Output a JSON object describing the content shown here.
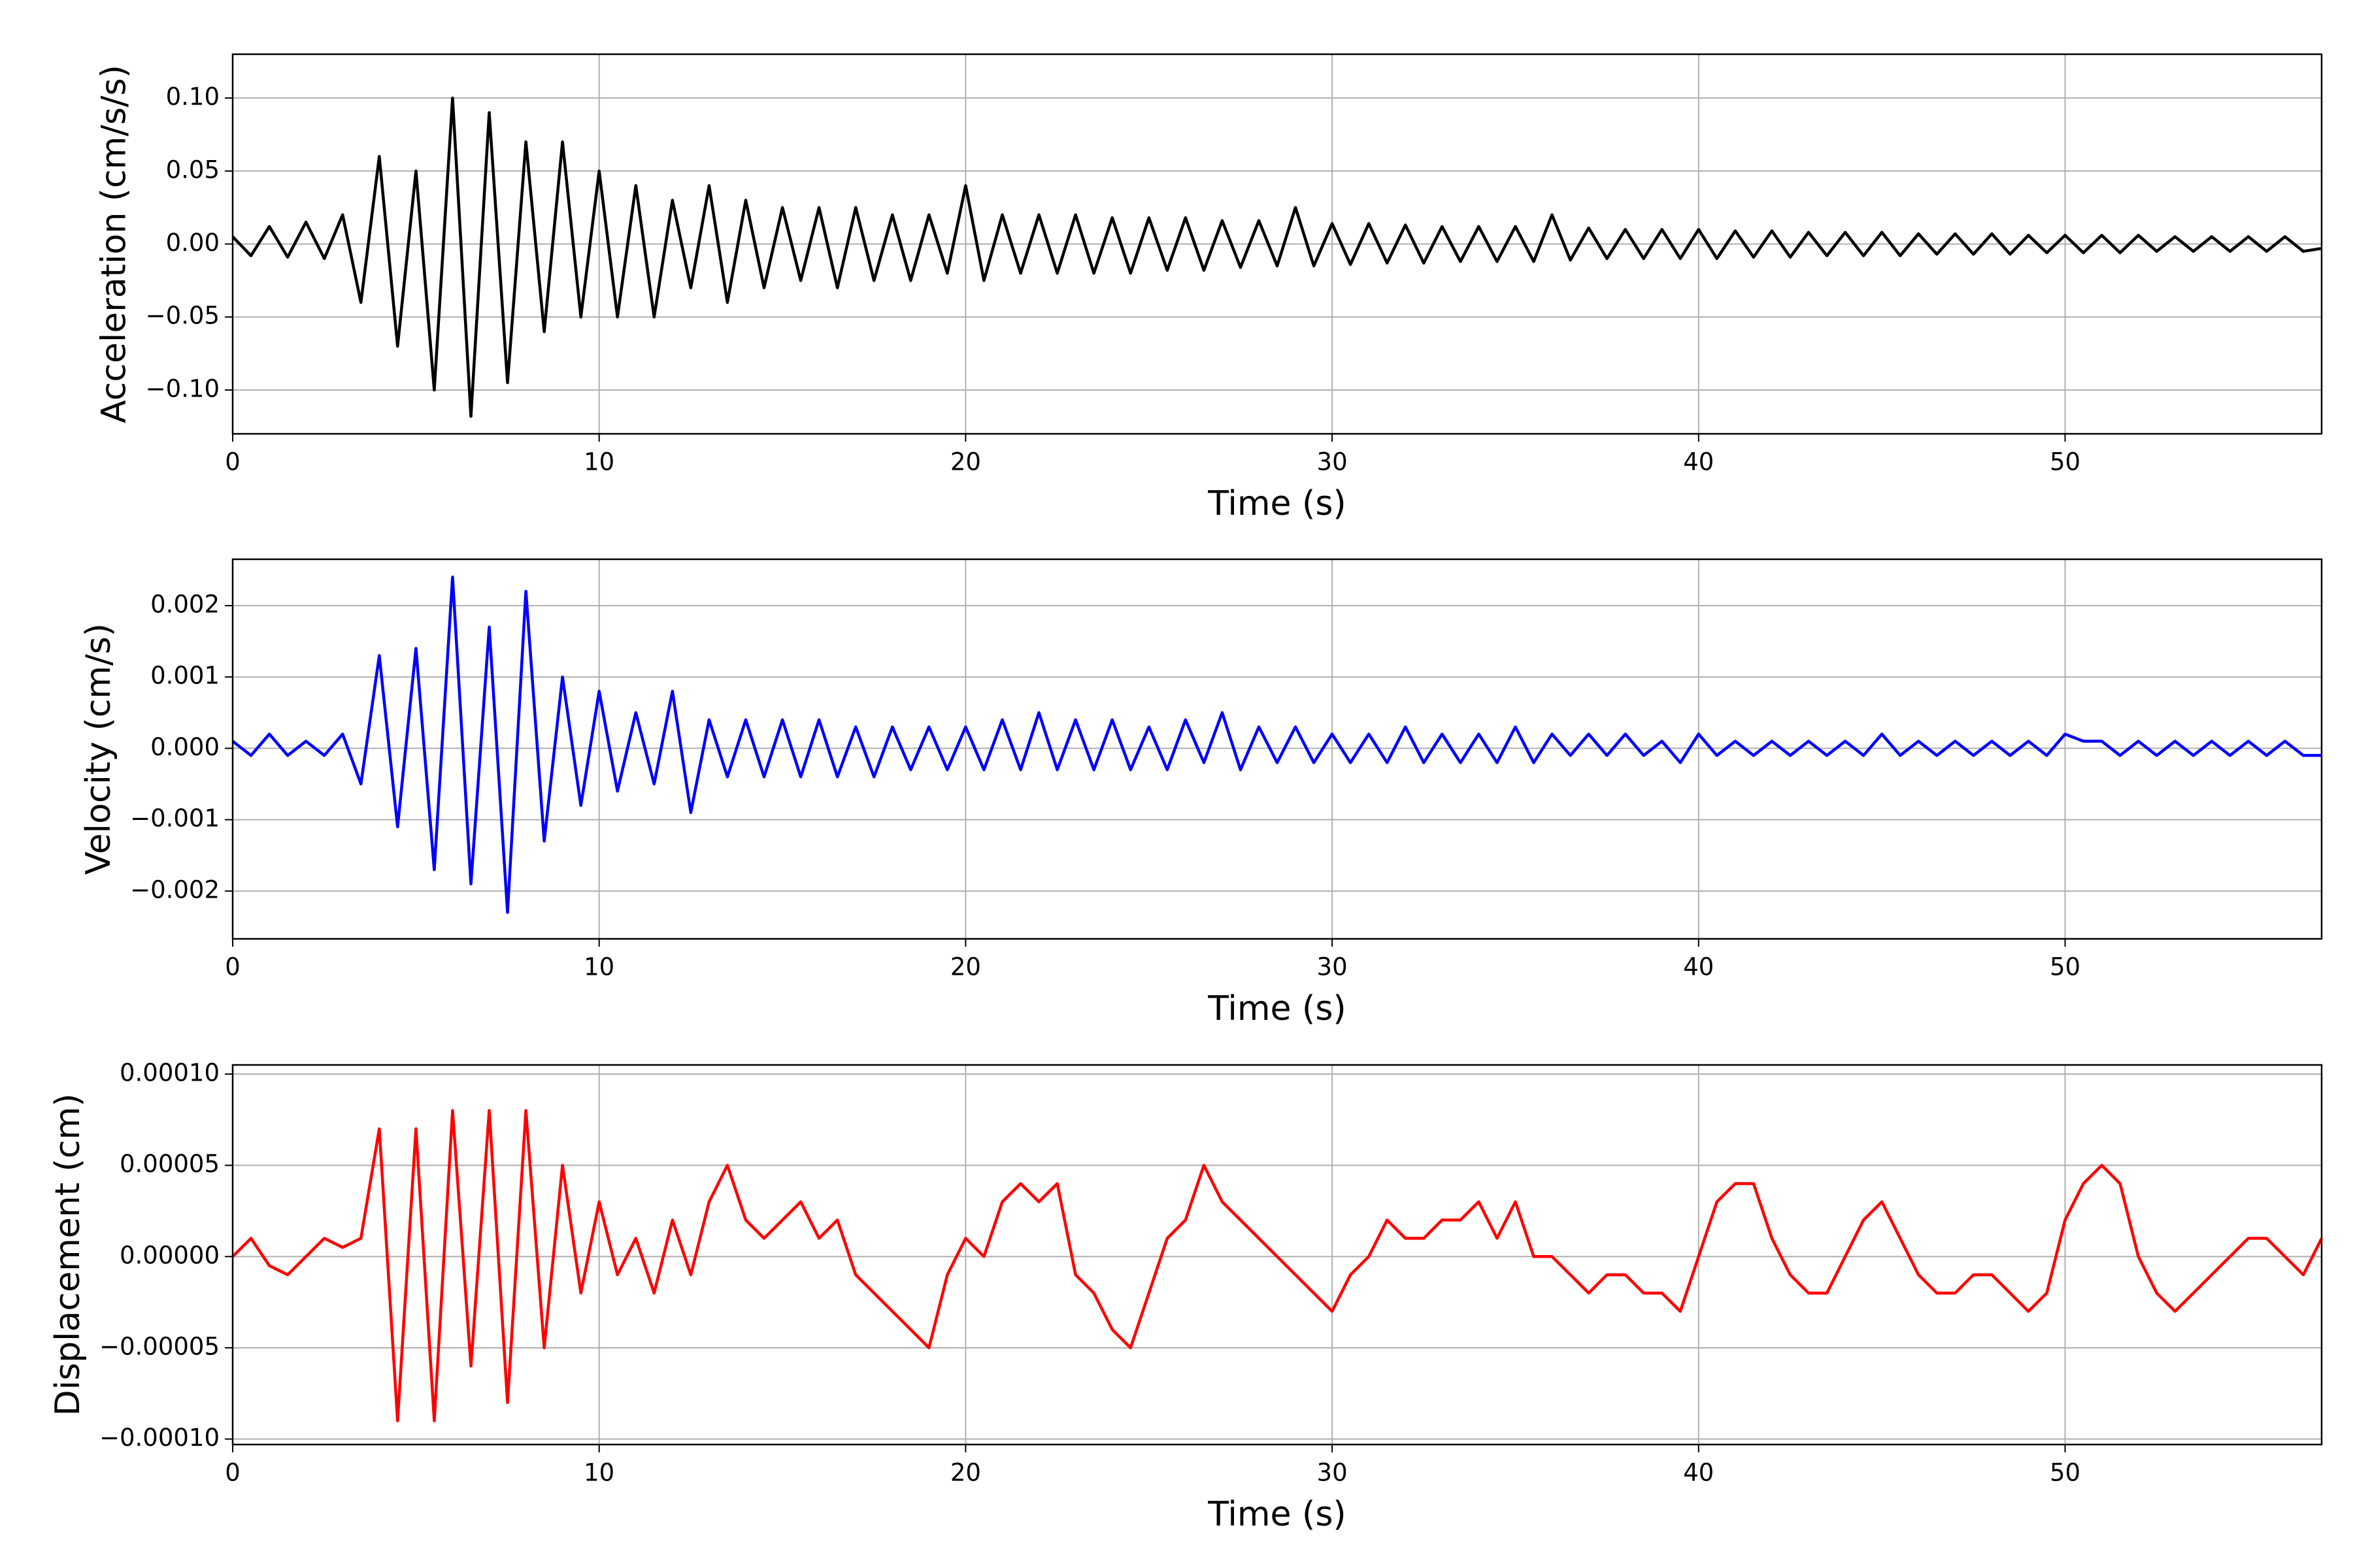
{
  "chart_data": [
    {
      "type": "line",
      "ylabel": "Acceleration (cm/s/s)",
      "xlabel": "Time (s)",
      "color": "#000000",
      "grid": true,
      "xlim": [
        0,
        57
      ],
      "xticks": [
        0,
        10,
        20,
        30,
        40,
        50
      ],
      "ylim": [
        -0.13,
        0.13
      ],
      "yticks": [
        {
          "value": -0.1,
          "label": "−0.10"
        },
        {
          "value": -0.05,
          "label": "−0.05"
        },
        {
          "value": 0,
          "label": "0.00"
        },
        {
          "value": 0.05,
          "label": "0.05"
        },
        {
          "value": 0.1,
          "label": "0.10"
        }
      ],
      "x": [
        0,
        0.5,
        1,
        1.5,
        2,
        2.5,
        3,
        3.5,
        4,
        4.5,
        5,
        5.5,
        6,
        6.5,
        7,
        7.5,
        8,
        8.5,
        9,
        9.5,
        10,
        10.5,
        11,
        11.5,
        12,
        12.5,
        13,
        13.5,
        14,
        14.5,
        15,
        15.5,
        16,
        16.5,
        17,
        17.5,
        18,
        18.5,
        19,
        19.5,
        20,
        20.5,
        21,
        21.5,
        22,
        22.5,
        23,
        23.5,
        24,
        24.5,
        25,
        25.5,
        26,
        26.5,
        27,
        27.5,
        28,
        28.5,
        29,
        29.5,
        30,
        30.5,
        31,
        31.5,
        32,
        32.5,
        33,
        33.5,
        34,
        34.5,
        35,
        35.5,
        36,
        36.5,
        37,
        37.5,
        38,
        38.5,
        39,
        39.5,
        40,
        40.5,
        41,
        41.5,
        42,
        42.5,
        43,
        43.5,
        44,
        44.5,
        45,
        45.5,
        46,
        46.5,
        47,
        47.5,
        48,
        48.5,
        49,
        49.5,
        50,
        50.5,
        51,
        51.5,
        52,
        52.5,
        53,
        53.5,
        54,
        54.5,
        55,
        55.5,
        56,
        56.5,
        57
      ],
      "values": [
        0.005,
        -0.008,
        0.012,
        -0.009,
        0.015,
        -0.01,
        0.02,
        -0.04,
        0.06,
        -0.07,
        0.05,
        -0.1,
        0.1,
        -0.118,
        0.09,
        -0.095,
        0.07,
        -0.06,
        0.07,
        -0.05,
        0.05,
        -0.05,
        0.04,
        -0.05,
        0.03,
        -0.03,
        0.04,
        -0.04,
        0.03,
        -0.03,
        0.025,
        -0.025,
        0.025,
        -0.03,
        0.025,
        -0.025,
        0.02,
        -0.025,
        0.02,
        -0.02,
        0.04,
        -0.025,
        0.02,
        -0.02,
        0.02,
        -0.02,
        0.02,
        -0.02,
        0.018,
        -0.02,
        0.018,
        -0.018,
        0.018,
        -0.018,
        0.016,
        -0.016,
        0.016,
        -0.015,
        0.025,
        -0.015,
        0.014,
        -0.014,
        0.014,
        -0.013,
        0.013,
        -0.013,
        0.012,
        -0.012,
        0.012,
        -0.012,
        0.012,
        -0.012,
        0.02,
        -0.011,
        0.011,
        -0.01,
        0.01,
        -0.01,
        0.01,
        -0.01,
        0.01,
        -0.01,
        0.009,
        -0.009,
        0.009,
        -0.009,
        0.008,
        -0.008,
        0.008,
        -0.008,
        0.008,
        -0.008,
        0.007,
        -0.007,
        0.007,
        -0.007,
        0.007,
        -0.007,
        0.006,
        -0.006,
        0.006,
        -0.006,
        0.006,
        -0.006,
        0.006,
        -0.005,
        0.005,
        -0.005,
        0.005,
        -0.005,
        0.005,
        -0.005,
        0.005,
        -0.005,
        -0.003
      ]
    },
    {
      "type": "line",
      "ylabel": "Velocity (cm/s)",
      "xlabel": "Time (s)",
      "color": "#0000ff",
      "grid": true,
      "xlim": [
        0,
        57
      ],
      "xticks": [
        0,
        10,
        20,
        30,
        40,
        50
      ],
      "ylim": [
        -0.00267,
        0.00265
      ],
      "yticks": [
        {
          "value": -0.002,
          "label": "−0.002"
        },
        {
          "value": -0.001,
          "label": "−0.001"
        },
        {
          "value": 0,
          "label": "0.000"
        },
        0.001,
        0.002
      ],
      "x": [
        0,
        0.5,
        1,
        1.5,
        2,
        2.5,
        3,
        3.5,
        4,
        4.5,
        5,
        5.5,
        6,
        6.5,
        7,
        7.5,
        8,
        8.5,
        9,
        9.5,
        10,
        10.5,
        11,
        11.5,
        12,
        12.5,
        13,
        13.5,
        14,
        14.5,
        15,
        15.5,
        16,
        16.5,
        17,
        17.5,
        18,
        18.5,
        19,
        19.5,
        20,
        20.5,
        21,
        21.5,
        22,
        22.5,
        23,
        23.5,
        24,
        24.5,
        25,
        25.5,
        26,
        26.5,
        27,
        27.5,
        28,
        28.5,
        29,
        29.5,
        30,
        30.5,
        31,
        31.5,
        32,
        32.5,
        33,
        33.5,
        34,
        34.5,
        35,
        35.5,
        36,
        36.5,
        37,
        37.5,
        38,
        38.5,
        39,
        39.5,
        40,
        40.5,
        41,
        41.5,
        42,
        42.5,
        43,
        43.5,
        44,
        44.5,
        45,
        45.5,
        46,
        46.5,
        47,
        47.5,
        48,
        48.5,
        49,
        49.5,
        50,
        50.5,
        51,
        51.5,
        52,
        52.5,
        53,
        53.5,
        54,
        54.5,
        55,
        55.5,
        56,
        56.5,
        57
      ],
      "values": [
        0.0001,
        -0.0001,
        0.0002,
        -0.0001,
        0.0001,
        -0.0001,
        0.0002,
        -0.0005,
        0.0013,
        -0.0011,
        0.0014,
        -0.0017,
        0.0024,
        -0.0019,
        0.0017,
        -0.0023,
        0.0022,
        -0.0013,
        0.001,
        -0.0008,
        0.0008,
        -0.0006,
        0.0005,
        -0.0005,
        0.0008,
        -0.0009,
        0.0004,
        -0.0004,
        0.0004,
        -0.0004,
        0.0004,
        -0.0004,
        0.0004,
        -0.0004,
        0.0003,
        -0.0004,
        0.0003,
        -0.0003,
        0.0003,
        -0.0003,
        0.0003,
        -0.0003,
        0.0004,
        -0.0003,
        0.0005,
        -0.0003,
        0.0004,
        -0.0003,
        0.0004,
        -0.0003,
        0.0003,
        -0.0003,
        0.0004,
        -0.0002,
        0.0005,
        -0.0003,
        0.0003,
        -0.0002,
        0.0003,
        -0.0002,
        0.0002,
        -0.0002,
        0.0002,
        -0.0002,
        0.0003,
        -0.0002,
        0.0002,
        -0.0002,
        0.0002,
        -0.0002,
        0.0003,
        -0.0002,
        0.0002,
        -0.0001,
        0.0002,
        -0.0001,
        0.0002,
        -0.0001,
        0.0001,
        -0.0002,
        0.0002,
        -0.0001,
        0.0001,
        -0.0001,
        0.0001,
        -0.0001,
        0.0001,
        -0.0001,
        0.0001,
        -0.0001,
        0.0002,
        -0.0001,
        0.0001,
        -0.0001,
        0.0001,
        -0.0001,
        0.0001,
        -0.0001,
        0.0001,
        -0.0001,
        0.0002,
        0.0001,
        0.0001,
        -0.0001,
        0.0001,
        -0.0001,
        0.0001,
        -0.0001,
        0.0001,
        -0.0001,
        0.0001,
        -0.0001,
        0.0001,
        -0.0001,
        -0.0001
      ]
    },
    {
      "type": "line",
      "ylabel": "Displacement (cm)",
      "xlabel": "Time (s)",
      "color": "#ff0000",
      "grid": true,
      "xlim": [
        0,
        57
      ],
      "xticks": [
        0,
        10,
        20,
        30,
        40,
        50
      ],
      "ylim": [
        -0.000103,
        0.000105
      ],
      "yticks": [
        {
          "value": -0.0001,
          "label": "−0.00010"
        },
        {
          "value": -5e-05,
          "label": "−0.00005"
        },
        {
          "value": 0,
          "label": "0.00000"
        },
        {
          "value": 5e-05,
          "label": "0.00005"
        },
        {
          "value": 0.0001,
          "label": "0.00010"
        }
      ],
      "x": [
        0,
        0.5,
        1,
        1.5,
        2,
        2.5,
        3,
        3.5,
        4,
        4.5,
        5,
        5.5,
        6,
        6.5,
        7,
        7.5,
        8,
        8.5,
        9,
        9.5,
        10,
        10.5,
        11,
        11.5,
        12,
        12.5,
        13,
        13.5,
        14,
        14.5,
        15,
        15.5,
        16,
        16.5,
        17,
        17.5,
        18,
        18.5,
        19,
        19.5,
        20,
        20.5,
        21,
        21.5,
        22,
        22.5,
        23,
        23.5,
        24,
        24.5,
        25,
        25.5,
        26,
        26.5,
        27,
        27.5,
        28,
        28.5,
        29,
        29.5,
        30,
        30.5,
        31,
        31.5,
        32,
        32.5,
        33,
        33.5,
        34,
        34.5,
        35,
        35.5,
        36,
        36.5,
        37,
        37.5,
        38,
        38.5,
        39,
        39.5,
        40,
        40.5,
        41,
        41.5,
        42,
        42.5,
        43,
        43.5,
        44,
        44.5,
        45,
        45.5,
        46,
        46.5,
        47,
        47.5,
        48,
        48.5,
        49,
        49.5,
        50,
        50.5,
        51,
        51.5,
        52,
        52.5,
        53,
        53.5,
        54,
        54.5,
        55,
        55.5,
        56,
        56.5,
        57
      ],
      "values": [
        0,
        1e-05,
        -5e-06,
        -1e-05,
        0,
        1e-05,
        5e-06,
        1e-05,
        7e-05,
        -9e-05,
        7e-05,
        -9e-05,
        8e-05,
        -6e-05,
        8e-05,
        -8e-05,
        8e-05,
        -5e-05,
        5e-05,
        -2e-05,
        3e-05,
        -1e-05,
        1e-05,
        -2e-05,
        2e-05,
        -1e-05,
        3e-05,
        5e-05,
        2e-05,
        1e-05,
        2e-05,
        3e-05,
        1e-05,
        2e-05,
        -1e-05,
        -2e-05,
        -3e-05,
        -4e-05,
        -5e-05,
        -1e-05,
        1e-05,
        0,
        3e-05,
        4e-05,
        3e-05,
        4e-05,
        -1e-05,
        -2e-05,
        -4e-05,
        -5e-05,
        -2e-05,
        1e-05,
        2e-05,
        5e-05,
        3e-05,
        2e-05,
        1e-05,
        0,
        -1e-05,
        -2e-05,
        -3e-05,
        -1e-05,
        0,
        2e-05,
        1e-05,
        1e-05,
        2e-05,
        2e-05,
        3e-05,
        1e-05,
        3e-05,
        0,
        0,
        -1e-05,
        -2e-05,
        -1e-05,
        -1e-05,
        -2e-05,
        -2e-05,
        -3e-05,
        0,
        3e-05,
        4e-05,
        4e-05,
        1e-05,
        -1e-05,
        -2e-05,
        -2e-05,
        0,
        2e-05,
        3e-05,
        1e-05,
        -1e-05,
        -2e-05,
        -2e-05,
        -1e-05,
        -1e-05,
        -2e-05,
        -3e-05,
        -2e-05,
        2e-05,
        4e-05,
        5e-05,
        4e-05,
        0,
        -2e-05,
        -3e-05,
        -2e-05,
        -1e-05,
        0,
        1e-05,
        1e-05,
        0,
        -1e-05,
        1e-05
      ]
    }
  ]
}
